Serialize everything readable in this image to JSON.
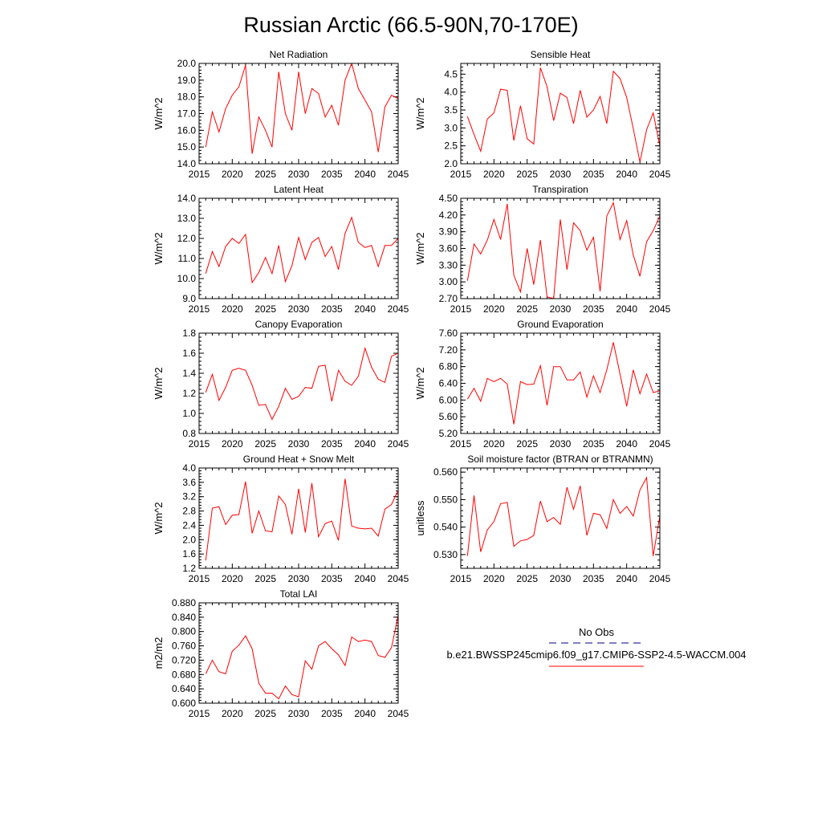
{
  "title": "Russian Arctic (66.5-90N,70-170E)",
  "legend": {
    "items": [
      {
        "label": "No Obs",
        "color": "#000080",
        "dash": true
      },
      {
        "label": "b.e21.BWSSP245cmip6.f09_g17.CMIP6-SSP2-4.5-WACCM.004",
        "color": "#ff0000",
        "dash": false
      }
    ]
  },
  "colors": {
    "series": "#ff0000",
    "axis": "#000000"
  },
  "chart_data": [
    {
      "type": "line",
      "title": "Net Radiation",
      "ylabel": "W/m^2",
      "xlim": [
        2015,
        2045
      ],
      "xticks": [
        "2015",
        "2020",
        "2025",
        "2030",
        "2035",
        "2040",
        "2045"
      ],
      "ylim": [
        14.0,
        20.0
      ],
      "yticks": [
        "14.0",
        "15.0",
        "16.0",
        "17.0",
        "18.0",
        "19.0",
        "20.0"
      ],
      "grid": false,
      "x": [
        2016,
        2017,
        2018,
        2019,
        2020,
        2021,
        2022,
        2023,
        2024,
        2025,
        2026,
        2027,
        2028,
        2029,
        2030,
        2031,
        2032,
        2033,
        2034,
        2035,
        2036,
        2037,
        2038,
        2039,
        2040,
        2041,
        2042,
        2043,
        2044,
        2045
      ],
      "series": [
        {
          "values": [
            15.0,
            17.1,
            15.9,
            17.3,
            18.1,
            18.6,
            19.9,
            14.6,
            16.8,
            16.0,
            15.0,
            19.5,
            17.0,
            16.0,
            19.5,
            17.0,
            18.5,
            18.2,
            16.8,
            17.5,
            16.3,
            19.0,
            20.0,
            18.5,
            17.8,
            17.1,
            14.7,
            17.4,
            18.1,
            17.9
          ]
        }
      ]
    },
    {
      "type": "line",
      "title": "Sensible Heat",
      "ylabel": "W/m^2",
      "xlim": [
        2015,
        2045
      ],
      "xticks": [
        "2015",
        "2020",
        "2025",
        "2030",
        "2035",
        "2040",
        "2045"
      ],
      "ylim": [
        2.0,
        4.8
      ],
      "yticks": [
        "2.0",
        "2.5",
        "3.0",
        "3.5",
        "4.0",
        "4.5"
      ],
      "grid": false,
      "x": [
        2016,
        2017,
        2018,
        2019,
        2020,
        2021,
        2022,
        2023,
        2024,
        2025,
        2026,
        2027,
        2028,
        2029,
        2030,
        2031,
        2032,
        2033,
        2034,
        2035,
        2036,
        2037,
        2038,
        2039,
        2040,
        2041,
        2042,
        2043,
        2044,
        2045
      ],
      "series": [
        {
          "values": [
            3.32,
            2.82,
            2.35,
            3.25,
            3.42,
            4.08,
            4.05,
            2.65,
            3.62,
            2.7,
            2.55,
            4.68,
            4.15,
            3.2,
            3.97,
            3.85,
            3.12,
            4.05,
            3.3,
            3.5,
            3.88,
            3.12,
            4.58,
            4.38,
            3.85,
            2.98,
            2.05,
            2.95,
            3.42,
            2.5
          ]
        }
      ]
    },
    {
      "type": "line",
      "title": "Latent Heat",
      "ylabel": "W/m^2",
      "xlim": [
        2015,
        2045
      ],
      "xticks": [
        "2015",
        "2020",
        "2025",
        "2030",
        "2035",
        "2040",
        "2045"
      ],
      "ylim": [
        9.0,
        14.0
      ],
      "yticks": [
        "9.0",
        "10.0",
        "11.0",
        "12.0",
        "13.0",
        "14.0"
      ],
      "grid": false,
      "x": [
        2016,
        2017,
        2018,
        2019,
        2020,
        2021,
        2022,
        2023,
        2024,
        2025,
        2026,
        2027,
        2028,
        2029,
        2030,
        2031,
        2032,
        2033,
        2034,
        2035,
        2036,
        2037,
        2038,
        2039,
        2040,
        2041,
        2042,
        2043,
        2044,
        2045
      ],
      "series": [
        {
          "values": [
            10.25,
            11.35,
            10.6,
            11.6,
            12.0,
            11.75,
            12.2,
            9.8,
            10.3,
            11.05,
            10.25,
            11.65,
            9.85,
            10.65,
            12.05,
            10.95,
            11.8,
            12.05,
            11.1,
            11.6,
            10.45,
            12.25,
            13.05,
            11.8,
            11.55,
            11.65,
            10.6,
            11.65,
            11.65,
            12.0
          ]
        }
      ]
    },
    {
      "type": "line",
      "title": "Transpiration",
      "ylabel": "W/m^2",
      "xlim": [
        2015,
        2045
      ],
      "xticks": [
        "2015",
        "2020",
        "2025",
        "2030",
        "2035",
        "2040",
        "2045"
      ],
      "ylim": [
        2.7,
        4.5
      ],
      "yticks": [
        "2.70",
        "3.00",
        "3.30",
        "3.60",
        "3.90",
        "4.20",
        "4.50"
      ],
      "grid": false,
      "x": [
        2016,
        2017,
        2018,
        2019,
        2020,
        2021,
        2022,
        2023,
        2024,
        2025,
        2026,
        2027,
        2028,
        2029,
        2030,
        2031,
        2032,
        2033,
        2034,
        2035,
        2036,
        2037,
        2038,
        2039,
        2040,
        2041,
        2042,
        2043,
        2044,
        2045
      ],
      "series": [
        {
          "values": [
            3.02,
            3.68,
            3.5,
            3.75,
            4.12,
            3.76,
            4.4,
            3.12,
            2.82,
            3.6,
            2.95,
            3.75,
            2.73,
            2.7,
            4.12,
            3.22,
            4.06,
            3.92,
            3.57,
            3.8,
            2.83,
            4.18,
            4.42,
            3.76,
            4.1,
            3.48,
            3.1,
            3.72,
            3.92,
            4.18
          ]
        }
      ]
    },
    {
      "type": "line",
      "title": "Canopy Evaporation",
      "ylabel": "W/m^2",
      "xlim": [
        2015,
        2045
      ],
      "xticks": [
        "2015",
        "2020",
        "2025",
        "2030",
        "2035",
        "2040",
        "2045"
      ],
      "ylim": [
        0.8,
        1.8
      ],
      "yticks": [
        "0.8",
        "1.0",
        "1.2",
        "1.4",
        "1.6",
        "1.8"
      ],
      "grid": false,
      "x": [
        2016,
        2017,
        2018,
        2019,
        2020,
        2021,
        2022,
        2023,
        2024,
        2025,
        2026,
        2027,
        2028,
        2029,
        2030,
        2031,
        2032,
        2033,
        2034,
        2035,
        2036,
        2037,
        2038,
        2039,
        2040,
        2041,
        2042,
        2043,
        2044,
        2045
      ],
      "series": [
        {
          "values": [
            1.21,
            1.39,
            1.13,
            1.26,
            1.43,
            1.45,
            1.43,
            1.28,
            1.08,
            1.09,
            0.94,
            1.07,
            1.25,
            1.14,
            1.17,
            1.26,
            1.25,
            1.47,
            1.48,
            1.12,
            1.43,
            1.32,
            1.28,
            1.37,
            1.65,
            1.46,
            1.34,
            1.31,
            1.57,
            1.6
          ]
        }
      ]
    },
    {
      "type": "line",
      "title": "Ground Evaporation",
      "ylabel": "W/m^2",
      "xlim": [
        2015,
        2045
      ],
      "xticks": [
        "2015",
        "2020",
        "2025",
        "2030",
        "2035",
        "2040",
        "2045"
      ],
      "ylim": [
        5.2,
        7.6
      ],
      "yticks": [
        "5.20",
        "5.60",
        "6.00",
        "6.40",
        "6.80",
        "7.20",
        "7.60"
      ],
      "grid": false,
      "x": [
        2016,
        2017,
        2018,
        2019,
        2020,
        2021,
        2022,
        2023,
        2024,
        2025,
        2026,
        2027,
        2028,
        2029,
        2030,
        2031,
        2032,
        2033,
        2034,
        2035,
        2036,
        2037,
        2038,
        2039,
        2040,
        2041,
        2042,
        2043,
        2044,
        2045
      ],
      "series": [
        {
          "values": [
            6.02,
            6.28,
            5.97,
            6.52,
            6.44,
            6.52,
            6.38,
            5.42,
            6.44,
            6.37,
            6.38,
            6.82,
            5.87,
            6.8,
            6.8,
            6.48,
            6.48,
            6.67,
            6.07,
            6.58,
            6.18,
            6.72,
            7.38,
            6.62,
            5.85,
            6.72,
            6.15,
            6.62,
            6.18,
            6.22
          ]
        }
      ]
    },
    {
      "type": "line",
      "title": "Ground Heat + Snow Melt",
      "ylabel": "W/m^2",
      "xlim": [
        2015,
        2045
      ],
      "xticks": [
        "2015",
        "2020",
        "2025",
        "2030",
        "2035",
        "2040",
        "2045"
      ],
      "ylim": [
        1.2,
        4.0
      ],
      "yticks": [
        "1.2",
        "1.6",
        "2.0",
        "2.4",
        "2.8",
        "3.2",
        "3.6",
        "4.0"
      ],
      "grid": false,
      "x": [
        2016,
        2017,
        2018,
        2019,
        2020,
        2021,
        2022,
        2023,
        2024,
        2025,
        2026,
        2027,
        2028,
        2029,
        2030,
        2031,
        2032,
        2033,
        2034,
        2035,
        2036,
        2037,
        2038,
        2039,
        2040,
        2041,
        2042,
        2043,
        2044,
        2045
      ],
      "series": [
        {
          "values": [
            1.42,
            2.88,
            2.92,
            2.42,
            2.68,
            2.7,
            3.62,
            2.18,
            2.8,
            2.25,
            2.22,
            3.22,
            2.98,
            2.15,
            3.42,
            2.2,
            3.58,
            2.08,
            2.45,
            2.52,
            1.98,
            3.7,
            2.38,
            2.32,
            2.3,
            2.32,
            2.1,
            2.85,
            2.98,
            3.38
          ]
        }
      ]
    },
    {
      "type": "line",
      "title": "Soil moisture factor (BTRAN or BTRANMN)",
      "ylabel": "unitless",
      "xlim": [
        2015,
        2045
      ],
      "xticks": [
        "2015",
        "2020",
        "2025",
        "2030",
        "2035",
        "2040",
        "2045"
      ],
      "ylim": [
        0.525,
        0.5615
      ],
      "yticks": [
        "0.530",
        "0.540",
        "0.550",
        "0.560"
      ],
      "grid": false,
      "x": [
        2016,
        2017,
        2018,
        2019,
        2020,
        2021,
        2022,
        2023,
        2024,
        2025,
        2026,
        2027,
        2028,
        2029,
        2030,
        2031,
        2032,
        2033,
        2034,
        2035,
        2036,
        2037,
        2038,
        2039,
        2040,
        2041,
        2042,
        2043,
        2044,
        2045
      ],
      "series": [
        {
          "values": [
            0.5295,
            0.5515,
            0.531,
            0.539,
            0.542,
            0.5485,
            0.549,
            0.533,
            0.535,
            0.5355,
            0.537,
            0.5495,
            0.542,
            0.5435,
            0.541,
            0.5545,
            0.5465,
            0.555,
            0.537,
            0.545,
            0.5445,
            0.5395,
            0.55,
            0.545,
            0.5475,
            0.544,
            0.5535,
            0.558,
            0.5295,
            0.544
          ]
        }
      ]
    },
    {
      "type": "line",
      "title": "Total LAI",
      "ylabel": "m2/m2",
      "xlim": [
        2015,
        2045
      ],
      "xticks": [
        "2015",
        "2020",
        "2025",
        "2030",
        "2035",
        "2040",
        "2045"
      ],
      "ylim": [
        0.6,
        0.88
      ],
      "yticks": [
        "0.600",
        "0.640",
        "0.680",
        "0.720",
        "0.760",
        "0.800",
        "0.840",
        "0.880"
      ],
      "grid": false,
      "x": [
        2016,
        2017,
        2018,
        2019,
        2020,
        2021,
        2022,
        2023,
        2024,
        2025,
        2026,
        2027,
        2028,
        2029,
        2030,
        2031,
        2032,
        2033,
        2034,
        2035,
        2036,
        2037,
        2038,
        2039,
        2040,
        2041,
        2042,
        2043,
        2044,
        2045
      ],
      "series": [
        {
          "values": [
            0.682,
            0.72,
            0.688,
            0.682,
            0.745,
            0.762,
            0.788,
            0.752,
            0.656,
            0.628,
            0.628,
            0.612,
            0.648,
            0.624,
            0.618,
            0.718,
            0.695,
            0.76,
            0.772,
            0.752,
            0.735,
            0.705,
            0.785,
            0.772,
            0.776,
            0.772,
            0.733,
            0.728,
            0.755,
            0.845
          ]
        }
      ]
    }
  ]
}
